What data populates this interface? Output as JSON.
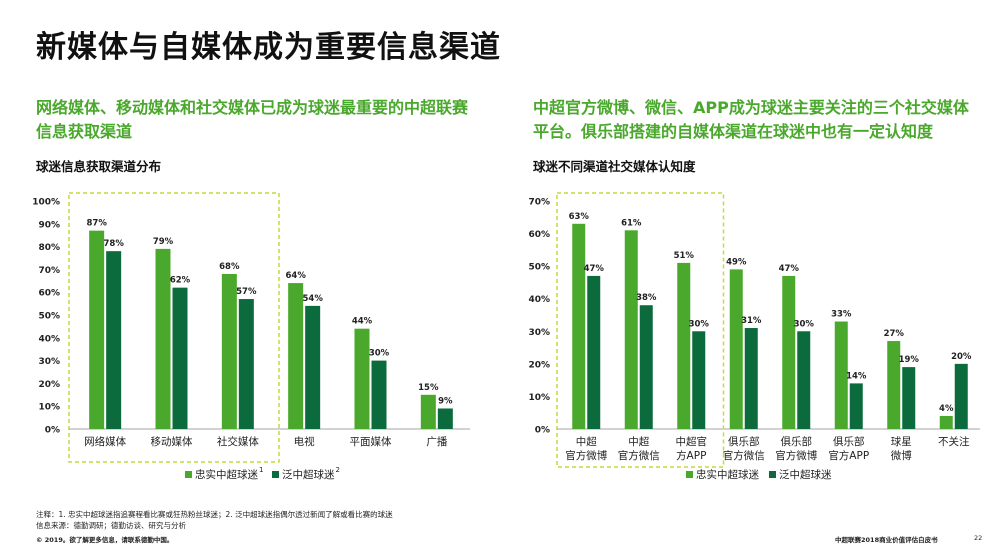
{
  "page": {
    "title": "新媒体与自媒体成为重要信息渠道",
    "left_subhead": "网络媒体、移动媒体和社交媒体已成为球迷最重要的中超联赛信息获取渠道",
    "right_subhead": "中超官方微博、微信、APP成为球迷主要关注的三个社交媒体平台。俱乐部搭建的自媒体渠道在球迷中也有一定认知度",
    "footnote_line1": "注释：1. 忠实中超球迷指追赛程看比赛或狂热粉丝球迷；2. 泛中超球迷指偶尔透过新闻了解或看比赛的球迷",
    "footnote_line2": "信息来源：德勤调研；德勤访谈、研究与分析",
    "copyright": "© 2019。欲了解更多信息，请联系德勤中国。",
    "report_name": "中超联赛2018商业价值评估白皮书",
    "page_number": "22"
  },
  "colors": {
    "loyal": "#4aa82c",
    "casual": "#0b6b3c",
    "highlight_border": "#c5d93a",
    "accent_text": "#4aa82c"
  },
  "chart_data": [
    {
      "type": "bar",
      "title": "球迷信息获取渠道分布",
      "categories": [
        [
          "网络媒体"
        ],
        [
          "移动媒体"
        ],
        [
          "社交媒体"
        ],
        [
          "电视"
        ],
        [
          "平面媒体"
        ],
        [
          "广播"
        ]
      ],
      "series": [
        {
          "name": "忠实中超球迷",
          "legend_sup": "1",
          "values": [
            87,
            79,
            68,
            64,
            44,
            15
          ]
        },
        {
          "name": "泛中超球迷",
          "legend_sup": "2",
          "values": [
            78,
            62,
            57,
            54,
            30,
            9
          ]
        }
      ],
      "yticks": [
        "0%",
        "10%",
        "20%",
        "30%",
        "40%",
        "50%",
        "60%",
        "70%",
        "80%",
        "90%",
        "100%"
      ],
      "ylim": [
        0,
        100
      ],
      "value_suffix": "%",
      "highlight_categories": [
        0,
        2
      ],
      "legend_position": "bottom"
    },
    {
      "type": "bar",
      "title": "球迷不同渠道社交媒体认知度",
      "categories": [
        [
          "中超",
          "官方微博"
        ],
        [
          "中超",
          "官方微信"
        ],
        [
          "中超官",
          "方APP"
        ],
        [
          "俱乐部",
          "官方微信"
        ],
        [
          "俱乐部",
          "官方微博"
        ],
        [
          "俱乐部",
          "官方APP"
        ],
        [
          "球星",
          "微博"
        ],
        [
          "不关注"
        ]
      ],
      "series": [
        {
          "name": "忠实中超球迷",
          "legend_sup": "",
          "values": [
            63,
            61,
            51,
            49,
            47,
            33,
            27,
            4
          ]
        },
        {
          "name": "泛中超球迷",
          "legend_sup": "",
          "values": [
            47,
            38,
            30,
            31,
            30,
            14,
            19,
            20
          ]
        }
      ],
      "yticks": [
        "0%",
        "10%",
        "20%",
        "30%",
        "40%",
        "50%",
        "60%",
        "70%"
      ],
      "ylim": [
        0,
        70
      ],
      "value_suffix": "%",
      "highlight_categories": [
        0,
        2
      ],
      "legend_position": "bottom"
    }
  ]
}
